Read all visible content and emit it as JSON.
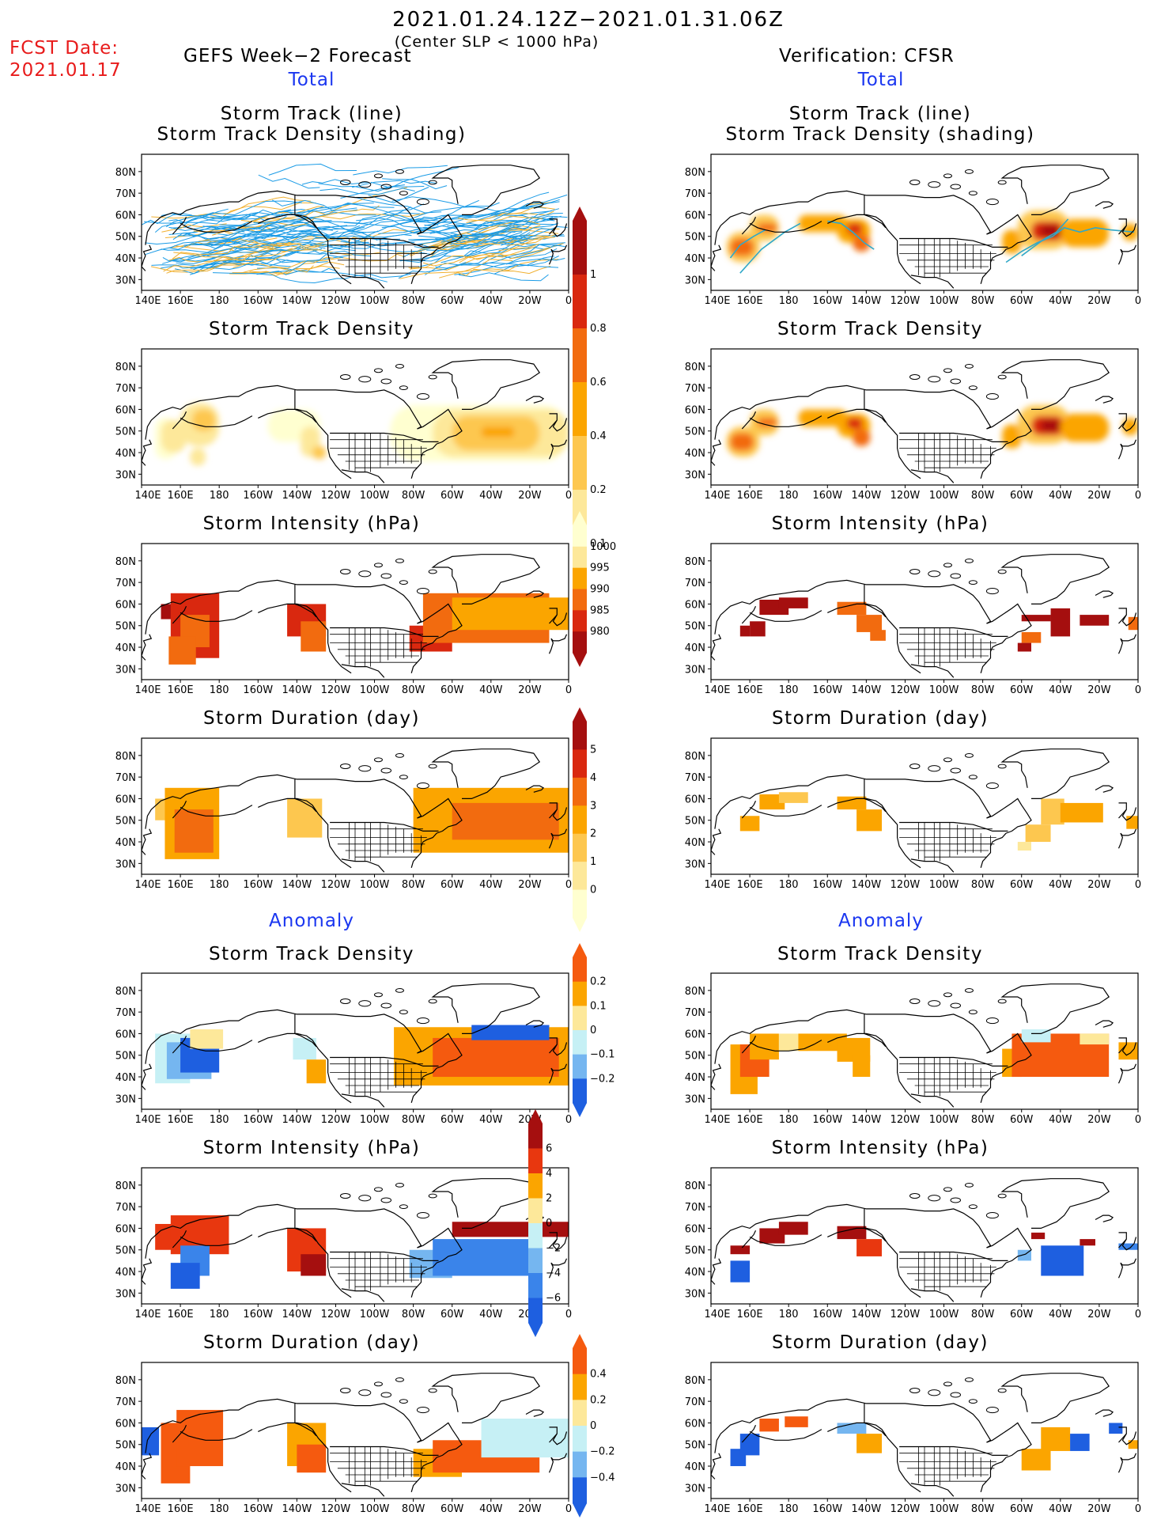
{
  "header": {
    "title": "2021.01.24.12Z−2021.01.31.06Z",
    "subtitle": "(Center SLP < 1000 hPa)",
    "fcst_label": "FCST Date:",
    "fcst_date": "2021.01.17",
    "left_label": "GEFS Week−2 Forecast",
    "right_label": "Verification: CFSR"
  },
  "sections": {
    "total": "Total",
    "anomaly": "Anomaly"
  },
  "axes": {
    "lon_labels": [
      "140E",
      "160E",
      "180",
      "160W",
      "140W",
      "120W",
      "100W",
      "80W",
      "60W",
      "40W",
      "20W",
      "0"
    ],
    "lat_labels": [
      "80N",
      "70N",
      "60N",
      "50N",
      "40N",
      "30N"
    ],
    "lon_range": [
      140,
      360
    ],
    "lat_range": [
      25,
      88
    ]
  },
  "panel_titles": {
    "track_line_1": "Storm Track (line)",
    "track_line_2": "Storm Track Density (shading)",
    "density": "Storm Track Density",
    "intensity": "Storm Intensity (hPa)",
    "duration": "Storm Duration (day)"
  },
  "colorbars": {
    "density": {
      "labels": [
        "1",
        "0.8",
        "0.6",
        "0.4",
        "0.2",
        "0.1"
      ],
      "colors": [
        "#a50f0f",
        "#d9280f",
        "#f26b0f",
        "#fba500",
        "#fdc74f",
        "#fde89a",
        "#ffffd0"
      ]
    },
    "intensity": {
      "labels": [
        "1000",
        "995",
        "990",
        "985",
        "980"
      ],
      "colors": [
        "#ffffd0",
        "#fde89a",
        "#fba500",
        "#f26b0f",
        "#d9280f",
        "#a50f0f"
      ]
    },
    "duration": {
      "labels": [
        "5",
        "4",
        "3",
        "2",
        "1",
        "0"
      ],
      "colors": [
        "#a50f0f",
        "#d9280f",
        "#f26b0f",
        "#fba500",
        "#fdc74f",
        "#fde89a",
        "#ffffd0"
      ]
    },
    "anom_density": {
      "labels": [
        "0.2",
        "0.1",
        "0",
        "−0.1",
        "−0.2"
      ],
      "colors": [
        "#f55a0f",
        "#fba500",
        "#fde89a",
        "#c6f0f5",
        "#75b6f0",
        "#1e5fe0"
      ]
    },
    "anom_intensity": {
      "labels": [
        "6",
        "4",
        "2",
        "0",
        "−2",
        "−4",
        "−6"
      ],
      "colors": [
        "#a50f0f",
        "#e8370f",
        "#fba500",
        "#fde89a",
        "#c6f0f5",
        "#75b6f0",
        "#3a84ea",
        "#1e5fe0"
      ]
    },
    "anom_duration": {
      "labels": [
        "0.4",
        "0.2",
        "0",
        "−0.2",
        "−0.4"
      ],
      "colors": [
        "#f55a0f",
        "#fba500",
        "#fde89a",
        "#c6f0f5",
        "#75b6f0",
        "#1e5fe0"
      ]
    }
  }
}
